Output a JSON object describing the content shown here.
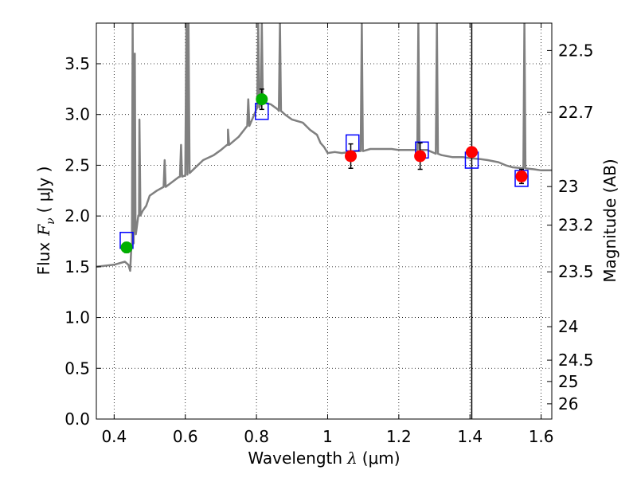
{
  "chart_data": {
    "type": "scatter",
    "xlabel_text": "Wavelength",
    "xlabel_math": "λ",
    "xlabel_unit": "(μm)",
    "ylabel_text": "Flux",
    "ylabel_math": "F",
    "ylabel_math_sub": "ν",
    "ylabel_unit": "( μJy )",
    "y2label": "Magnitude (AB)",
    "xlim": [
      0.35,
      1.63
    ],
    "ylim": [
      0.0,
      3.9
    ],
    "grid": true,
    "x_ticks": [
      0.4,
      0.6,
      0.8,
      1.0,
      1.2,
      1.4,
      1.6
    ],
    "x_tick_labels": [
      "0.4",
      "0.6",
      "0.8",
      "1",
      "1.2",
      "1.4",
      "1.6"
    ],
    "y_ticks": [
      0.0,
      0.5,
      1.0,
      1.5,
      2.0,
      2.5,
      3.0,
      3.5
    ],
    "y_tick_labels": [
      "0.0",
      "0.5",
      "1.0",
      "1.5",
      "2.0",
      "2.5",
      "3.0",
      "3.5"
    ],
    "y2_ticks": [
      {
        "flux": 3.63,
        "label": "22.5"
      },
      {
        "flux": 3.02,
        "label": "22.7"
      },
      {
        "flux": 2.29,
        "label": "23"
      },
      {
        "flux": 1.91,
        "label": "23.2"
      },
      {
        "flux": 1.45,
        "label": "23.5"
      },
      {
        "flux": 0.91,
        "label": "24"
      },
      {
        "flux": 0.58,
        "label": "24.5"
      },
      {
        "flux": 0.37,
        "label": "25"
      },
      {
        "flux": 0.15,
        "label": "26"
      }
    ],
    "vertical_line_x": 1.405,
    "spectrum": {
      "color": "#808080",
      "continuum": [
        [
          0.35,
          1.5
        ],
        [
          0.4,
          1.52
        ],
        [
          0.43,
          1.55
        ],
        [
          0.44,
          1.52
        ],
        [
          0.445,
          1.46
        ],
        [
          0.45,
          1.7
        ],
        [
          0.46,
          1.85
        ],
        [
          0.47,
          2.0
        ],
        [
          0.48,
          2.05
        ],
        [
          0.49,
          2.1
        ],
        [
          0.5,
          2.2
        ],
        [
          0.52,
          2.25
        ],
        [
          0.55,
          2.3
        ],
        [
          0.58,
          2.38
        ],
        [
          0.6,
          2.4
        ],
        [
          0.62,
          2.45
        ],
        [
          0.65,
          2.55
        ],
        [
          0.68,
          2.6
        ],
        [
          0.7,
          2.65
        ],
        [
          0.72,
          2.7
        ],
        [
          0.75,
          2.78
        ],
        [
          0.78,
          2.9
        ],
        [
          0.8,
          3.05
        ],
        [
          0.82,
          3.12
        ],
        [
          0.84,
          3.1
        ],
        [
          0.86,
          3.05
        ],
        [
          0.88,
          3.0
        ],
        [
          0.9,
          2.95
        ],
        [
          0.93,
          2.92
        ],
        [
          0.95,
          2.85
        ],
        [
          0.97,
          2.8
        ],
        [
          0.98,
          2.72
        ],
        [
          0.99,
          2.68
        ],
        [
          1.0,
          2.62
        ],
        [
          1.02,
          2.63
        ],
        [
          1.04,
          2.62
        ],
        [
          1.06,
          2.63
        ],
        [
          1.08,
          2.64
        ],
        [
          1.1,
          2.64
        ],
        [
          1.12,
          2.66
        ],
        [
          1.15,
          2.66
        ],
        [
          1.18,
          2.66
        ],
        [
          1.2,
          2.65
        ],
        [
          1.22,
          2.65
        ],
        [
          1.25,
          2.65
        ],
        [
          1.28,
          2.65
        ],
        [
          1.3,
          2.62
        ],
        [
          1.32,
          2.6
        ],
        [
          1.35,
          2.58
        ],
        [
          1.38,
          2.58
        ],
        [
          1.4,
          2.57
        ],
        [
          1.43,
          2.56
        ],
        [
          1.45,
          2.55
        ],
        [
          1.48,
          2.53
        ],
        [
          1.5,
          2.5
        ],
        [
          1.52,
          2.48
        ],
        [
          1.55,
          2.47
        ],
        [
          1.58,
          2.46
        ],
        [
          1.6,
          2.45
        ],
        [
          1.63,
          2.45
        ]
      ],
      "emission_lines": [
        {
          "x": 0.452,
          "peak": 3.9
        },
        {
          "x": 0.458,
          "peak": 3.6
        },
        {
          "x": 0.471,
          "peak": 2.95
        },
        {
          "x": 0.542,
          "peak": 2.55
        },
        {
          "x": 0.588,
          "peak": 2.7
        },
        {
          "x": 0.603,
          "peak": 3.9
        },
        {
          "x": 0.609,
          "peak": 3.9
        },
        {
          "x": 0.72,
          "peak": 2.85
        },
        {
          "x": 0.777,
          "peak": 3.15
        },
        {
          "x": 0.805,
          "peak": 3.9
        },
        {
          "x": 0.815,
          "peak": 3.9
        },
        {
          "x": 0.866,
          "peak": 3.9
        },
        {
          "x": 1.096,
          "peak": 3.9
        },
        {
          "x": 1.255,
          "peak": 3.9
        },
        {
          "x": 1.307,
          "peak": 3.9
        },
        {
          "x": 1.553,
          "peak": 3.9
        }
      ]
    },
    "series": [
      {
        "color": "#00b000",
        "points": [
          {
            "x": 0.435,
            "y": 1.69,
            "err": 0.05
          },
          {
            "x": 0.815,
            "y": 3.15,
            "err": 0.1
          }
        ]
      },
      {
        "color": "#ff0000",
        "points": [
          {
            "x": 1.065,
            "y": 2.59,
            "err": 0.12
          },
          {
            "x": 1.26,
            "y": 2.59,
            "err": 0.13
          },
          {
            "x": 1.405,
            "y": 2.63,
            "err": 0.0
          },
          {
            "x": 1.545,
            "y": 2.39,
            "err": 0.07
          }
        ]
      },
      {
        "color": "#0000ff",
        "marker": "open-square",
        "points": [
          {
            "x": 0.435,
            "y": 1.76
          },
          {
            "x": 0.815,
            "y": 3.03
          },
          {
            "x": 1.07,
            "y": 2.72
          },
          {
            "x": 1.265,
            "y": 2.65
          },
          {
            "x": 1.405,
            "y": 2.55
          },
          {
            "x": 1.545,
            "y": 2.37
          }
        ]
      }
    ]
  }
}
